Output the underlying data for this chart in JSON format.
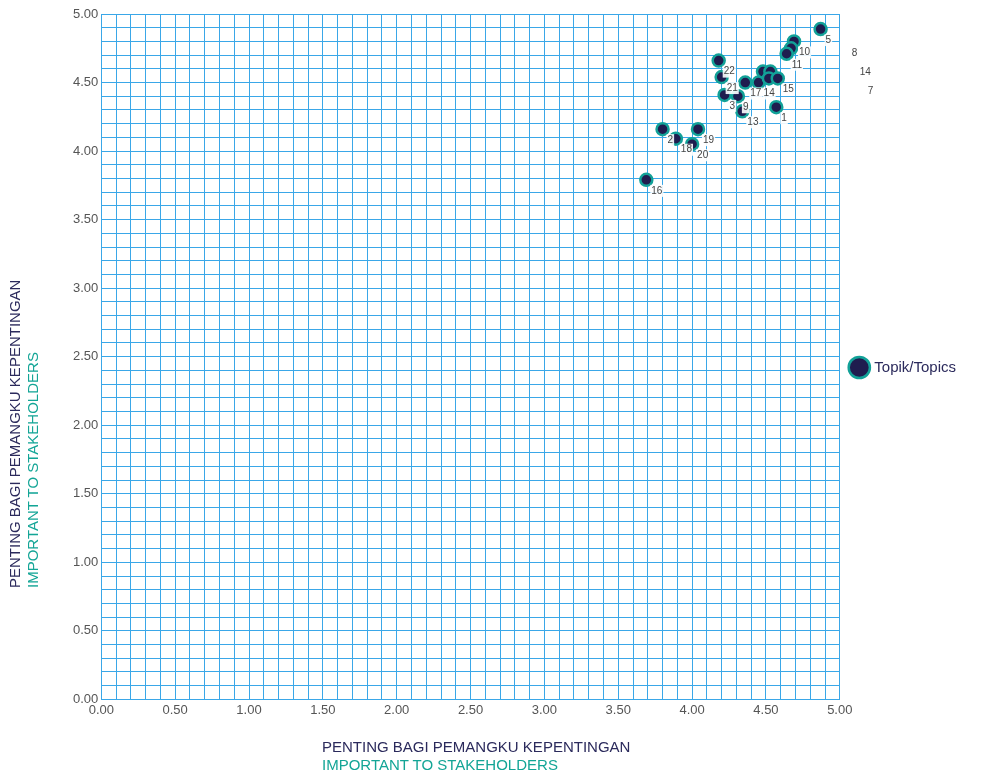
{
  "chart_data": {
    "type": "scatter",
    "xlabel": "PENTING BAGI PEMANGKU KEPENTINGAN\nIMPORTANT TO STAKEHOLDERS",
    "ylabel": "PENTING BAGI PEMANGKU KEPENTINGAN\nIMPORTANT TO STAKEHOLDERS",
    "xlim": [
      0,
      5
    ],
    "ylim": [
      0,
      5
    ],
    "xticks": [
      {
        "value": 0,
        "label": "0.00"
      },
      {
        "value": 0.1,
        "label": null
      },
      {
        "value": 0.2,
        "label": null
      },
      {
        "value": 0.3,
        "label": null
      },
      {
        "value": 0.4,
        "label": null
      },
      {
        "value": 0.5,
        "label": "0.50"
      },
      {
        "value": 0.6,
        "label": null
      },
      {
        "value": 0.7,
        "label": null
      },
      {
        "value": 0.8,
        "label": null
      },
      {
        "value": 0.9,
        "label": null
      },
      {
        "value": 1,
        "label": "1.00"
      },
      {
        "value": 1.1,
        "label": null
      },
      {
        "value": 1.2,
        "label": null
      },
      {
        "value": 1.3,
        "label": null
      },
      {
        "value": 1.4,
        "label": null
      },
      {
        "value": 1.5,
        "label": "1.50"
      },
      {
        "value": 1.6,
        "label": null
      },
      {
        "value": 1.7,
        "label": null
      },
      {
        "value": 1.8,
        "label": null
      },
      {
        "value": 1.9,
        "label": null
      },
      {
        "value": 2,
        "label": "2.00"
      },
      {
        "value": 2.1,
        "label": null
      },
      {
        "value": 2.2,
        "label": null
      },
      {
        "value": 2.3,
        "label": null
      },
      {
        "value": 2.4,
        "label": null
      },
      {
        "value": 2.5,
        "label": "2.50"
      },
      {
        "value": 2.6,
        "label": null
      },
      {
        "value": 2.7,
        "label": null
      },
      {
        "value": 2.8,
        "label": null
      },
      {
        "value": 2.9,
        "label": null
      },
      {
        "value": 3,
        "label": "3.00"
      },
      {
        "value": 3.1,
        "label": null
      },
      {
        "value": 3.2,
        "label": null
      },
      {
        "value": 3.3,
        "label": null
      },
      {
        "value": 3.4,
        "label": null
      },
      {
        "value": 3.5,
        "label": "3.50"
      },
      {
        "value": 3.6,
        "label": null
      },
      {
        "value": 3.7,
        "label": null
      },
      {
        "value": 3.8,
        "label": null
      },
      {
        "value": 3.9,
        "label": null
      },
      {
        "value": 4,
        "label": "4.00"
      },
      {
        "value": 4.1,
        "label": null
      },
      {
        "value": 4.2,
        "label": null
      },
      {
        "value": 4.3,
        "label": null
      },
      {
        "value": 4.4,
        "label": null
      },
      {
        "value": 4.5,
        "label": "4.50"
      },
      {
        "value": 4.6,
        "label": null
      },
      {
        "value": 4.7,
        "label": null
      },
      {
        "value": 4.8,
        "label": null
      },
      {
        "value": 4.9,
        "label": null
      },
      {
        "value": 5,
        "label": "5.00"
      }
    ],
    "yticks": [
      {
        "value": 0,
        "label": "0.00"
      },
      {
        "value": 0.1,
        "label": null
      },
      {
        "value": 0.2,
        "label": null
      },
      {
        "value": 0.3,
        "label": null
      },
      {
        "value": 0.4,
        "label": null
      },
      {
        "value": 0.5,
        "label": "0.50"
      },
      {
        "value": 0.6,
        "label": null
      },
      {
        "value": 0.7,
        "label": null
      },
      {
        "value": 0.8,
        "label": null
      },
      {
        "value": 0.9,
        "label": null
      },
      {
        "value": 1,
        "label": "1.00"
      },
      {
        "value": 1.1,
        "label": null
      },
      {
        "value": 1.2,
        "label": null
      },
      {
        "value": 1.3,
        "label": null
      },
      {
        "value": 1.4,
        "label": null
      },
      {
        "value": 1.5,
        "label": "1.50"
      },
      {
        "value": 1.6,
        "label": null
      },
      {
        "value": 1.7,
        "label": null
      },
      {
        "value": 1.8,
        "label": null
      },
      {
        "value": 1.9,
        "label": null
      },
      {
        "value": 2,
        "label": "2.00"
      },
      {
        "value": 2.1,
        "label": null
      },
      {
        "value": 2.2,
        "label": null
      },
      {
        "value": 2.3,
        "label": null
      },
      {
        "value": 2.4,
        "label": null
      },
      {
        "value": 2.5,
        "label": "2.50"
      },
      {
        "value": 2.6,
        "label": null
      },
      {
        "value": 2.7,
        "label": null
      },
      {
        "value": 2.8,
        "label": null
      },
      {
        "value": 2.9,
        "label": null
      },
      {
        "value": 3,
        "label": "3.00"
      },
      {
        "value": 3.1,
        "label": null
      },
      {
        "value": 3.2,
        "label": null
      },
      {
        "value": 3.3,
        "label": null
      },
      {
        "value": 3.4,
        "label": null
      },
      {
        "value": 3.5,
        "label": "3.50"
      },
      {
        "value": 3.6,
        "label": null
      },
      {
        "value": 3.7,
        "label": null
      },
      {
        "value": 3.8,
        "label": null
      },
      {
        "value": 3.9,
        "label": null
      },
      {
        "value": 4,
        "label": "4.00"
      },
      {
        "value": 4.1,
        "label": null
      },
      {
        "value": 4.2,
        "label": null
      },
      {
        "value": 4.3,
        "label": null
      },
      {
        "value": 4.4,
        "label": null
      },
      {
        "value": 4.5,
        "label": "4.50"
      },
      {
        "value": 4.6,
        "label": null
      },
      {
        "value": 4.7,
        "label": null
      },
      {
        "value": 4.8,
        "label": null
      },
      {
        "value": 4.9,
        "label": null
      },
      {
        "value": 5,
        "label": "5.00"
      }
    ],
    "grid": true,
    "legend": "right",
    "marker": "circle",
    "series": [
      {
        "name": "Topik/Topics",
        "color": "#1f1d4f",
        "x": [
          4.87,
          4.69,
          4.67,
          4.64,
          4.18,
          4.2,
          4.36,
          4.45,
          4.48,
          4.53,
          4.52,
          4.58,
          4.22,
          4.31,
          4.34,
          4.57,
          3.8,
          3.89,
          4.04,
          4.0,
          3.69
        ],
        "values": [
          4.89,
          4.8,
          4.75,
          4.71,
          4.66,
          4.54,
          4.5,
          4.5,
          4.58,
          4.58,
          4.53,
          4.53,
          4.41,
          4.4,
          4.29,
          4.32,
          4.16,
          4.09,
          4.16,
          4.05,
          3.79
        ]
      }
    ],
    "annotations": [
      {
        "text": "5",
        "x": 4.87,
        "y": 4.89
      },
      {
        "text": "10",
        "x": 4.69,
        "y": 4.8
      },
      {
        "text": "11",
        "x": 4.64,
        "y": 4.71
      },
      {
        "text": "22",
        "x": 4.18,
        "y": 4.66
      },
      {
        "text": "21",
        "x": 4.2,
        "y": 4.54
      },
      {
        "text": "17",
        "x": 4.36,
        "y": 4.5
      },
      {
        "text": "14",
        "x": 4.45,
        "y": 4.5
      },
      {
        "text": "15",
        "x": 4.58,
        "y": 4.53
      },
      {
        "text": "3",
        "x": 4.22,
        "y": 4.41
      },
      {
        "text": "9",
        "x": 4.31,
        "y": 4.4
      },
      {
        "text": "13",
        "x": 4.34,
        "y": 4.29
      },
      {
        "text": "1",
        "x": 4.57,
        "y": 4.32
      },
      {
        "text": "2",
        "x": 3.8,
        "y": 4.16
      },
      {
        "text": "18",
        "x": 3.89,
        "y": 4.09
      },
      {
        "text": "19",
        "x": 4.04,
        "y": 4.16
      },
      {
        "text": "20",
        "x": 4.0,
        "y": 4.05
      },
      {
        "text": "16",
        "x": 3.69,
        "y": 3.79
      },
      "8",
      "14",
      "7"
    ]
  }
}
